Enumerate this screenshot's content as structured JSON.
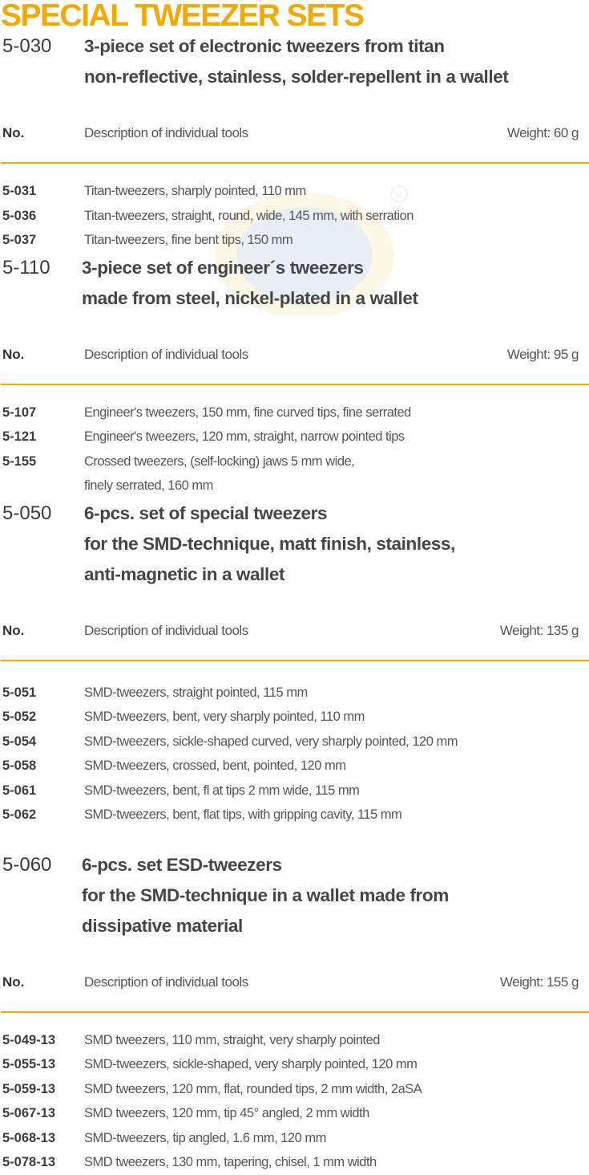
{
  "title": "SPECIAL TWEEZER SETS",
  "colors": {
    "accent": "#f5a800",
    "text": "#4a4a4a"
  },
  "watermark": {
    "icon": "company-logo-watermark",
    "text": "R"
  },
  "sections": [
    {
      "code": "5-030",
      "heading": [
        "3-piece set of electronic tweezers from titan",
        "non-reflective, stainless, solder-repellent in a wallet"
      ],
      "header": {
        "no": "No.",
        "desc": "Description of individual tools",
        "weight": "Weight: 60 g"
      },
      "items": [
        {
          "code": "5-031",
          "desc": "Titan-tweezers, sharply pointed, 110 mm"
        },
        {
          "code": "5-036",
          "desc": "Titan-tweezers, straight, round, wide, 145 mm, with serration"
        },
        {
          "code": "5-037",
          "desc": "Titan-tweezers, fine bent tips, 150 mm"
        }
      ]
    },
    {
      "code": "5-110",
      "heading": [
        "3-piece set of engineer´s tweezers",
        "made from steel, nickel-plated in a wallet"
      ],
      "header": {
        "no": "No.",
        "desc": "Description of individual tools",
        "weight": "Weight: 95 g"
      },
      "items": [
        {
          "code": "5-107",
          "desc": "Engineer's tweezers, 150 mm, fine curved tips, fine serrated"
        },
        {
          "code": "5-121",
          "desc": "Engineer's tweezers, 120 mm, straight, narrow pointed tips"
        },
        {
          "code": "5-155",
          "desc": "Crossed tweezers, (self-locking) jaws 5 mm wide,"
        },
        {
          "code": "",
          "desc": "finely serrated, 160 mm"
        }
      ]
    },
    {
      "code": "5-050",
      "heading": [
        "6-pcs. set of special tweezers",
        "for the SMD-technique, matt finish, stainless,",
        "anti-magnetic in a wallet"
      ],
      "header": {
        "no": "No.",
        "desc": "Description of individual tools",
        "weight": "Weight: 135 g"
      },
      "items": [
        {
          "code": "5-051",
          "desc": "SMD-tweezers, straight pointed, 115 mm"
        },
        {
          "code": "5-052",
          "desc": "SMD-tweezers, bent, very sharply pointed, 110 mm"
        },
        {
          "code": "5-054",
          "desc": "SMD-tweezers, sickle-shaped curved, very sharply pointed, 120 mm"
        },
        {
          "code": "5-058",
          "desc": "SMD-tweezers, crossed, bent, pointed, 120 mm"
        },
        {
          "code": "5-061",
          "desc": "SMD-tweezers, bent, fl at tips 2 mm wide, 115 mm"
        },
        {
          "code": "5-062",
          "desc": "SMD-tweezers, bent, flat tips, with gripping cavity, 115 mm"
        }
      ]
    },
    {
      "code": "5-060",
      "heading": [
        "6-pcs. set ESD-tweezers",
        "for the SMD-technique in a wallet made from",
        "dissipative material"
      ],
      "header": {
        "no": "No.",
        "desc": "Description of individual tools",
        "weight": "Weight: 155 g"
      },
      "items": [
        {
          "code": "5-049-13",
          "desc": "SMD tweezers, 110 mm, straight, very sharply pointed"
        },
        {
          "code": "5-055-13",
          "desc": "SMD-tweezers, sickle-shaped, very sharply pointed, 120 mm"
        },
        {
          "code": "5-059-13",
          "desc": "SMD tweezers, 120 mm, flat, rounded tips, 2 mm width, 2aSA"
        },
        {
          "code": "5-067-13",
          "desc": "SMD tweezers, 120 mm, tip 45° angled, 2 mm width"
        },
        {
          "code": "5-068-13",
          "desc": "SMD-tweezers, tip angled, 1.6 mm, 120 mm"
        },
        {
          "code": "5-078-13",
          "desc": "SMD tweezers, 130 mm, tapering, chisel, 1 mm width"
        }
      ]
    }
  ]
}
